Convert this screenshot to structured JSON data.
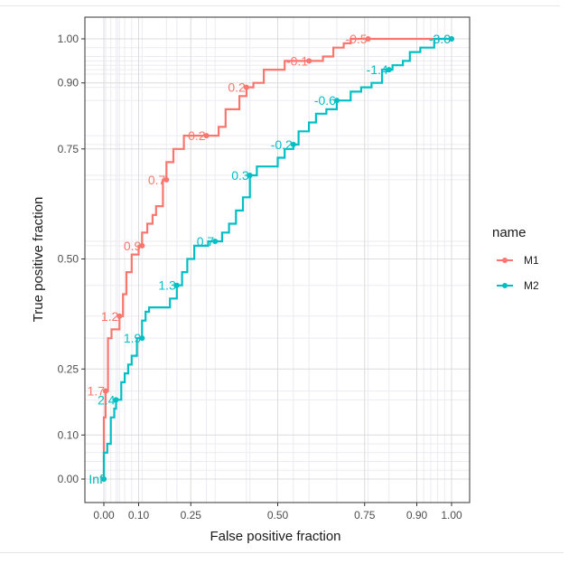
{
  "chart_data": {
    "type": "line",
    "title": "",
    "xlabel": "False positive fraction",
    "ylabel": "True positive fraction",
    "xlim": [
      0,
      1
    ],
    "ylim": [
      0,
      1
    ],
    "grid": true,
    "x_ticks": [
      {
        "value": 0.0,
        "label": "0.00"
      },
      {
        "value": 0.1,
        "label": "0.10"
      },
      {
        "value": 0.25,
        "label": "0.25"
      },
      {
        "value": 0.5,
        "label": "0.50"
      },
      {
        "value": 0.75,
        "label": "0.75"
      },
      {
        "value": 0.9,
        "label": "0.90"
      },
      {
        "value": 1.0,
        "label": "1.00"
      }
    ],
    "y_ticks": [
      {
        "value": 0.0,
        "label": "0.00"
      },
      {
        "value": 0.1,
        "label": "0.10"
      },
      {
        "value": 0.25,
        "label": "0.25"
      },
      {
        "value": 0.5,
        "label": "0.50"
      },
      {
        "value": 0.75,
        "label": "0.75"
      },
      {
        "value": 0.9,
        "label": "0.90"
      },
      {
        "value": 1.0,
        "label": "1.00"
      }
    ],
    "legend": {
      "title": "name",
      "position": "right"
    },
    "series": [
      {
        "name": "M1",
        "color": "#F8766D",
        "points": [
          [
            0.0,
            0.0
          ],
          [
            0.0,
            0.08
          ],
          [
            0.0,
            0.14
          ],
          [
            0.005,
            0.14
          ],
          [
            0.005,
            0.2
          ],
          [
            0.012,
            0.2
          ],
          [
            0.012,
            0.32
          ],
          [
            0.022,
            0.32
          ],
          [
            0.022,
            0.34
          ],
          [
            0.045,
            0.34
          ],
          [
            0.045,
            0.37
          ],
          [
            0.055,
            0.37
          ],
          [
            0.055,
            0.42
          ],
          [
            0.065,
            0.42
          ],
          [
            0.065,
            0.47
          ],
          [
            0.08,
            0.47
          ],
          [
            0.08,
            0.51
          ],
          [
            0.1,
            0.51
          ],
          [
            0.1,
            0.53
          ],
          [
            0.11,
            0.53
          ],
          [
            0.11,
            0.56
          ],
          [
            0.125,
            0.56
          ],
          [
            0.125,
            0.58
          ],
          [
            0.14,
            0.58
          ],
          [
            0.14,
            0.6
          ],
          [
            0.15,
            0.6
          ],
          [
            0.15,
            0.62
          ],
          [
            0.17,
            0.62
          ],
          [
            0.17,
            0.68
          ],
          [
            0.18,
            0.68
          ],
          [
            0.18,
            0.72
          ],
          [
            0.2,
            0.72
          ],
          [
            0.2,
            0.75
          ],
          [
            0.23,
            0.75
          ],
          [
            0.23,
            0.78
          ],
          [
            0.295,
            0.78
          ],
          [
            0.295,
            0.78
          ],
          [
            0.33,
            0.78
          ],
          [
            0.33,
            0.8
          ],
          [
            0.35,
            0.8
          ],
          [
            0.35,
            0.84
          ],
          [
            0.39,
            0.84
          ],
          [
            0.39,
            0.87
          ],
          [
            0.41,
            0.87
          ],
          [
            0.41,
            0.89
          ],
          [
            0.43,
            0.89
          ],
          [
            0.43,
            0.9
          ],
          [
            0.46,
            0.9
          ],
          [
            0.46,
            0.93
          ],
          [
            0.52,
            0.93
          ],
          [
            0.52,
            0.95
          ],
          [
            0.59,
            0.95
          ],
          [
            0.59,
            0.95
          ],
          [
            0.63,
            0.95
          ],
          [
            0.63,
            0.96
          ],
          [
            0.66,
            0.96
          ],
          [
            0.66,
            0.98
          ],
          [
            0.69,
            0.98
          ],
          [
            0.69,
            0.99
          ],
          [
            0.71,
            0.99
          ],
          [
            0.71,
            1.0
          ],
          [
            0.76,
            1.0
          ],
          [
            1.0,
            1.0
          ]
        ],
        "markers": [
          {
            "x": 0.0,
            "y": 0.0,
            "label": "Inf"
          },
          {
            "x": 0.005,
            "y": 0.2,
            "label": "1.7"
          },
          {
            "x": 0.045,
            "y": 0.37,
            "label": "1.2"
          },
          {
            "x": 0.11,
            "y": 0.53,
            "label": "0.9"
          },
          {
            "x": 0.18,
            "y": 0.68,
            "label": "0.7"
          },
          {
            "x": 0.295,
            "y": 0.78,
            "label": "0.2"
          },
          {
            "x": 0.41,
            "y": 0.89,
            "label": "0.2"
          },
          {
            "x": 0.59,
            "y": 0.95,
            "label": "-0.1"
          },
          {
            "x": 0.76,
            "y": 1.0,
            "label": "-0.5"
          },
          {
            "x": 1.0,
            "y": 1.0,
            "label": "-3.0"
          }
        ]
      },
      {
        "name": "M2",
        "color": "#00BFC4",
        "points": [
          [
            0.0,
            0.0
          ],
          [
            0.0,
            0.06
          ],
          [
            0.01,
            0.06
          ],
          [
            0.01,
            0.08
          ],
          [
            0.02,
            0.08
          ],
          [
            0.02,
            0.14
          ],
          [
            0.03,
            0.14
          ],
          [
            0.03,
            0.16
          ],
          [
            0.035,
            0.16
          ],
          [
            0.035,
            0.18
          ],
          [
            0.05,
            0.18
          ],
          [
            0.05,
            0.22
          ],
          [
            0.06,
            0.22
          ],
          [
            0.06,
            0.24
          ],
          [
            0.07,
            0.24
          ],
          [
            0.07,
            0.26
          ],
          [
            0.08,
            0.26
          ],
          [
            0.08,
            0.28
          ],
          [
            0.095,
            0.28
          ],
          [
            0.095,
            0.32
          ],
          [
            0.11,
            0.32
          ],
          [
            0.11,
            0.36
          ],
          [
            0.12,
            0.36
          ],
          [
            0.12,
            0.38
          ],
          [
            0.13,
            0.38
          ],
          [
            0.13,
            0.39
          ],
          [
            0.19,
            0.39
          ],
          [
            0.19,
            0.41
          ],
          [
            0.21,
            0.41
          ],
          [
            0.21,
            0.44
          ],
          [
            0.225,
            0.44
          ],
          [
            0.225,
            0.47
          ],
          [
            0.24,
            0.47
          ],
          [
            0.24,
            0.5
          ],
          [
            0.26,
            0.5
          ],
          [
            0.26,
            0.53
          ],
          [
            0.3,
            0.53
          ],
          [
            0.3,
            0.54
          ],
          [
            0.34,
            0.54
          ],
          [
            0.34,
            0.56
          ],
          [
            0.36,
            0.56
          ],
          [
            0.36,
            0.58
          ],
          [
            0.38,
            0.58
          ],
          [
            0.38,
            0.61
          ],
          [
            0.4,
            0.61
          ],
          [
            0.4,
            0.64
          ],
          [
            0.42,
            0.64
          ],
          [
            0.42,
            0.69
          ],
          [
            0.44,
            0.69
          ],
          [
            0.44,
            0.71
          ],
          [
            0.5,
            0.71
          ],
          [
            0.5,
            0.73
          ],
          [
            0.52,
            0.73
          ],
          [
            0.52,
            0.75
          ],
          [
            0.545,
            0.75
          ],
          [
            0.545,
            0.76
          ],
          [
            0.56,
            0.76
          ],
          [
            0.56,
            0.79
          ],
          [
            0.59,
            0.79
          ],
          [
            0.59,
            0.81
          ],
          [
            0.61,
            0.81
          ],
          [
            0.61,
            0.83
          ],
          [
            0.64,
            0.83
          ],
          [
            0.64,
            0.84
          ],
          [
            0.67,
            0.84
          ],
          [
            0.67,
            0.86
          ],
          [
            0.71,
            0.86
          ],
          [
            0.71,
            0.88
          ],
          [
            0.74,
            0.88
          ],
          [
            0.74,
            0.89
          ],
          [
            0.77,
            0.89
          ],
          [
            0.77,
            0.9
          ],
          [
            0.8,
            0.9
          ],
          [
            0.8,
            0.93
          ],
          [
            0.83,
            0.93
          ],
          [
            0.83,
            0.94
          ],
          [
            0.86,
            0.94
          ],
          [
            0.86,
            0.95
          ],
          [
            0.88,
            0.95
          ],
          [
            0.88,
            0.97
          ],
          [
            0.91,
            0.97
          ],
          [
            0.91,
            0.98
          ],
          [
            0.95,
            0.98
          ],
          [
            0.95,
            1.0
          ],
          [
            1.0,
            1.0
          ]
        ],
        "markers": [
          {
            "x": 0.0,
            "y": 0.0,
            "label": "Inf"
          },
          {
            "x": 0.035,
            "y": 0.18,
            "label": "2.4"
          },
          {
            "x": 0.11,
            "y": 0.32,
            "label": "1.9"
          },
          {
            "x": 0.21,
            "y": 0.44,
            "label": "1.3"
          },
          {
            "x": 0.32,
            "y": 0.54,
            "label": "0.7"
          },
          {
            "x": 0.42,
            "y": 0.69,
            "label": "0.3"
          },
          {
            "x": 0.545,
            "y": 0.76,
            "label": "-0.2"
          },
          {
            "x": 0.67,
            "y": 0.86,
            "label": "-0.6"
          },
          {
            "x": 0.82,
            "y": 0.93,
            "label": "-1.4"
          },
          {
            "x": 1.0,
            "y": 1.0,
            "label": "-3.0"
          }
        ]
      }
    ]
  }
}
